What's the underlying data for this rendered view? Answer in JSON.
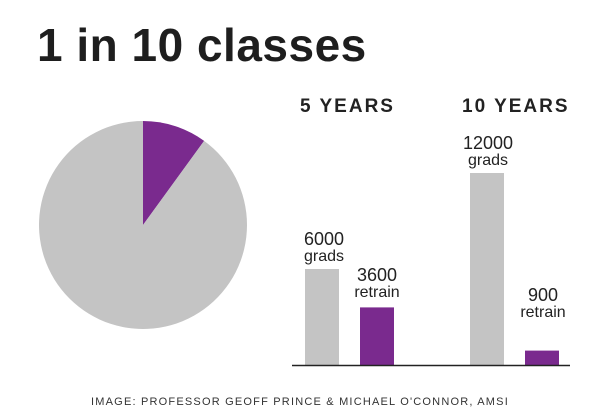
{
  "title": "1 in 10 classes",
  "credit": "IMAGE: PROFESSOR GEOFF PRINCE & MICHAEL O'CONNOR, AMSI",
  "colors": {
    "grey": "#c4c4c4",
    "purple": "#7a2a8e",
    "text": "#222222"
  },
  "chart_data": [
    {
      "type": "pie",
      "title": "",
      "slices": [
        {
          "label": "",
          "value": 10,
          "color": "#7a2a8e"
        },
        {
          "label": "",
          "value": 90,
          "color": "#c4c4c4"
        }
      ]
    },
    {
      "type": "bar",
      "groups": [
        "5 YEARS",
        "10 YEARS"
      ],
      "ylim": [
        0,
        12000
      ],
      "bars": [
        {
          "group": "5 YEARS",
          "value": 6000,
          "value_label": "6000",
          "unit": "grads",
          "color": "#c4c4c4"
        },
        {
          "group": "5 YEARS",
          "value": 3600,
          "value_label": "3600",
          "unit": "retrain",
          "color": "#7a2a8e"
        },
        {
          "group": "10 YEARS",
          "value": 12000,
          "value_label": "12000",
          "unit": "grads",
          "color": "#c4c4c4"
        },
        {
          "group": "10 YEARS",
          "value": 900,
          "value_label": "900",
          "unit": "retrain",
          "color": "#7a2a8e"
        }
      ]
    }
  ]
}
